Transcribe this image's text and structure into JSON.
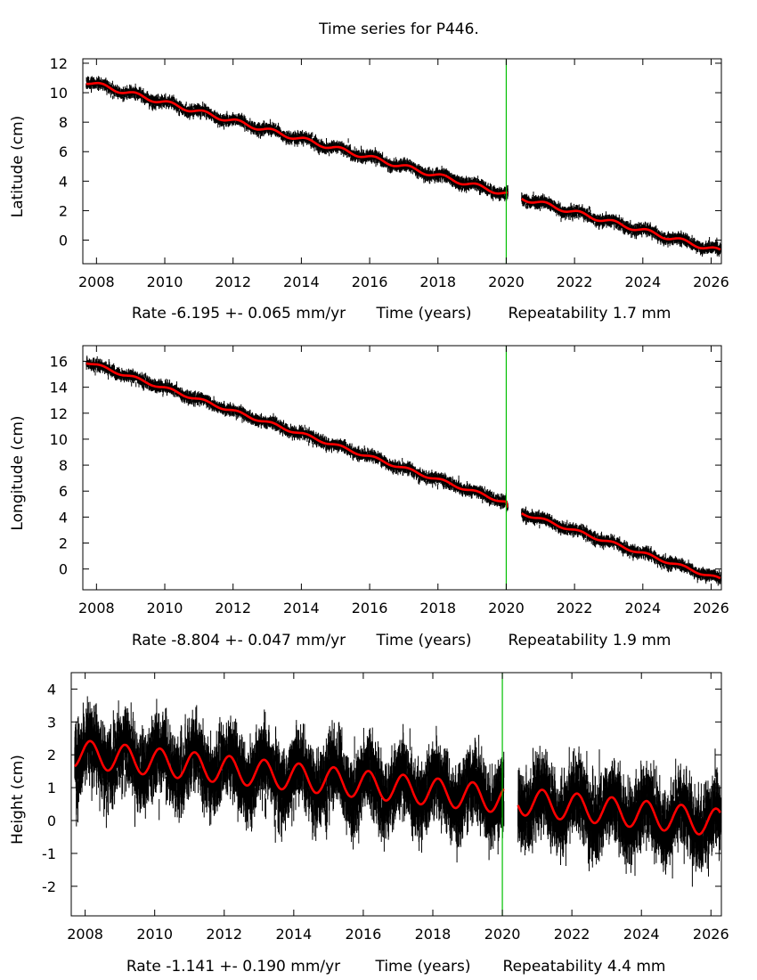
{
  "title": "Time series for P446.",
  "xlabel": "Time (years)",
  "colors": {
    "observations": "#000000",
    "model_fit": "#ff0000",
    "break_line": "#00c000"
  },
  "chart_data": [
    {
      "type": "scatter",
      "name": "latitude",
      "title": "Time series for P446.",
      "ylabel": "Latitude (cm)",
      "xlabel": "Time (years)",
      "rate_text": "Rate -6.195 +- 0.065 mm/yr",
      "repeatability_text": "Repeatability 1.7 mm",
      "xlim": [
        2007.6,
        2026.3
      ],
      "ylim": [
        -1.6,
        12.3
      ],
      "xticks": [
        2008,
        2010,
        2012,
        2014,
        2016,
        2018,
        2020,
        2022,
        2024,
        2026
      ],
      "yticks": [
        0,
        2,
        4,
        6,
        8,
        10,
        12
      ],
      "break_year": 2020.0,
      "data_gap": [
        2020.05,
        2020.45
      ],
      "rate_cm_per_yr": -0.6195,
      "trend_start": [
        2007.7,
        10.75
      ],
      "offset_at_break_cm": 0.0,
      "seasonal_amplitude_cm": 0.15,
      "scatter_cm": 0.17,
      "series": [
        {
          "name": "observations",
          "color": "#000000"
        },
        {
          "name": "model fit",
          "color": "#ff0000"
        }
      ]
    },
    {
      "type": "scatter",
      "name": "longitude",
      "ylabel": "Longitude (cm)",
      "xlabel": "Time (years)",
      "rate_text": "Rate -8.804 +- 0.047 mm/yr",
      "repeatability_text": "Repeatability 1.9 mm",
      "xlim": [
        2007.6,
        2026.3
      ],
      "ylim": [
        -1.6,
        17.2
      ],
      "xticks": [
        2008,
        2010,
        2012,
        2014,
        2016,
        2018,
        2020,
        2022,
        2024,
        2026
      ],
      "yticks": [
        0,
        2,
        4,
        6,
        8,
        10,
        12,
        14,
        16
      ],
      "break_year": 2020.0,
      "data_gap": [
        2020.05,
        2020.45
      ],
      "rate_cm_per_yr": -0.8804,
      "trend_start": [
        2007.7,
        15.95
      ],
      "offset_at_break_cm": -0.4,
      "seasonal_amplitude_cm": 0.12,
      "scatter_cm": 0.19,
      "series": [
        {
          "name": "observations",
          "color": "#000000"
        },
        {
          "name": "model fit",
          "color": "#ff0000"
        }
      ]
    },
    {
      "type": "scatter",
      "name": "height",
      "ylabel": "Height (cm)",
      "xlabel": "Time (years)",
      "rate_text": "Rate -1.141 +- 0.190 mm/yr",
      "repeatability_text": "Repeatability 4.4 mm",
      "xlim": [
        2007.6,
        2026.3
      ],
      "ylim": [
        -2.9,
        4.5
      ],
      "xticks": [
        2008,
        2010,
        2012,
        2014,
        2016,
        2018,
        2020,
        2022,
        2024,
        2026
      ],
      "yticks": [
        -2,
        -1,
        0,
        1,
        2,
        3,
        4
      ],
      "break_year": 2020.0,
      "data_gap": [
        2020.05,
        2020.45
      ],
      "rate_cm_per_yr": -0.1141,
      "trend_start": [
        2007.7,
        2.05
      ],
      "offset_at_break_cm": 0.0,
      "seasonal_amplitude_cm": 0.42,
      "scatter_cm": 0.44,
      "series": [
        {
          "name": "observations",
          "color": "#000000"
        },
        {
          "name": "model fit",
          "color": "#ff0000"
        }
      ]
    }
  ]
}
